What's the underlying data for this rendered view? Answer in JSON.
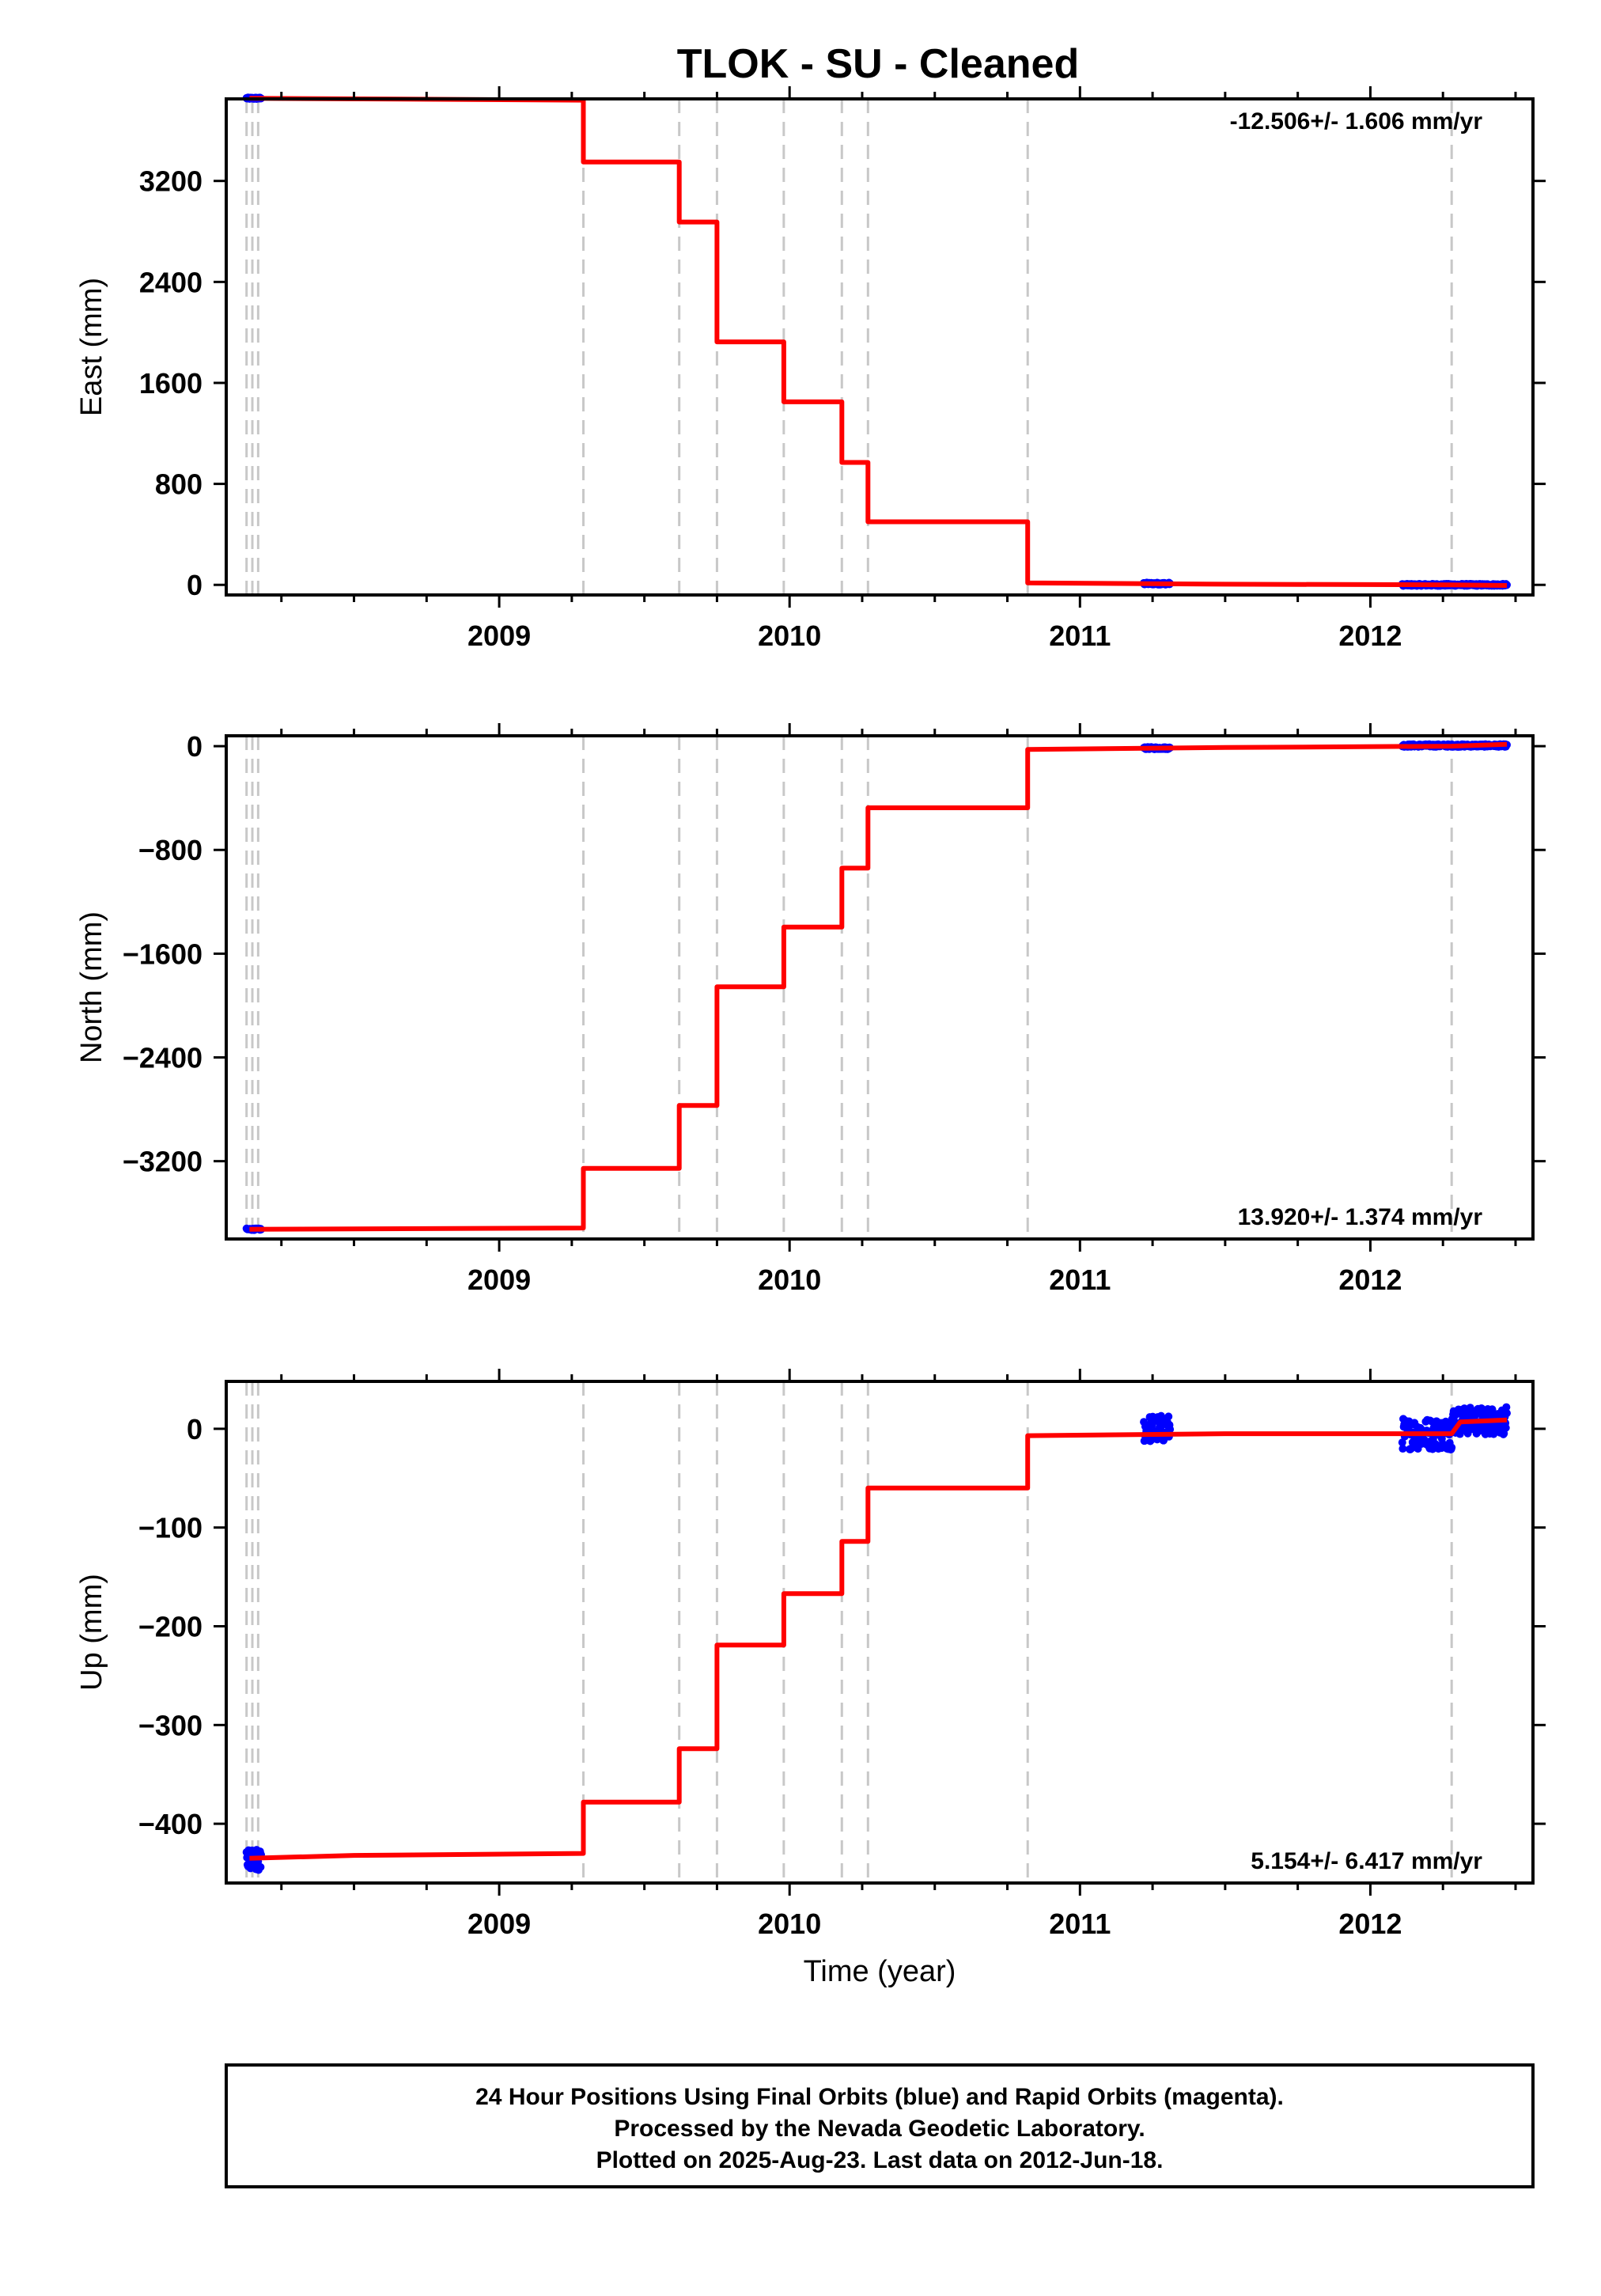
{
  "title": "TLOK  - SU - Cleaned",
  "footer": {
    "lines": [
      "24 Hour Positions Using Final Orbits (blue) and Rapid Orbits (magenta).",
      "Processed by the Nevada Geodetic Laboratory.",
      "Plotted on 2025-Aug-23. Last data on 2012-Jun-18."
    ]
  },
  "colors": {
    "data_points": "#0000ff",
    "model_line": "#ff0000",
    "event_lines": "#c8c8c8",
    "axes": "#000000"
  },
  "chart_data": [
    {
      "type": "line",
      "ylabel": "East (mm)",
      "xlabel": "",
      "rate_text": "-12.506+/- 1.606 mm/yr",
      "rate_position": "top-right",
      "xlim": [
        2008.06,
        2012.56
      ],
      "ylim": [
        -80,
        3850
      ],
      "x_ticks": [
        2009,
        2010,
        2011,
        2012
      ],
      "x_tick_labels": [
        "2009",
        "2010",
        "2011",
        "2012"
      ],
      "y_ticks": [
        0,
        800,
        1600,
        2400,
        3200
      ],
      "y_tick_labels": [
        "0",
        "800",
        "1600",
        "2400",
        "3200"
      ],
      "event_lines": [
        2008.13,
        2008.15,
        2008.17,
        2009.29,
        2009.62,
        2009.75,
        2009.98,
        2010.18,
        2010.27,
        2010.82,
        2012.28
      ],
      "model": {
        "x": [
          2008.14,
          2009.29,
          2009.29,
          2009.62,
          2009.62,
          2009.75,
          2009.75,
          2009.98,
          2009.98,
          2010.18,
          2010.18,
          2010.27,
          2010.27,
          2010.82,
          2010.82,
          2011.5,
          2012.28,
          2012.47
        ],
        "y": [
          3855,
          3840,
          3350,
          3350,
          2875,
          2875,
          1925,
          1925,
          1450,
          1450,
          970,
          970,
          500,
          500,
          15,
          5,
          0,
          -5
        ]
      },
      "data_clusters": [
        {
          "x_start": 2008.13,
          "x_end": 2008.18,
          "y_center": 3855,
          "spread": 6
        },
        {
          "x_start": 2011.22,
          "x_end": 2011.31,
          "y_center": 10,
          "spread": 8
        },
        {
          "x_start": 2012.11,
          "x_end": 2012.47,
          "y_center": 0,
          "spread": 8
        }
      ]
    },
    {
      "type": "line",
      "ylabel": "North (mm)",
      "xlabel": "",
      "rate_text": "13.920+/- 1.374 mm/yr",
      "rate_position": "bottom-right",
      "xlim": [
        2008.06,
        2012.56
      ],
      "ylim": [
        -3800,
        80
      ],
      "x_ticks": [
        2009,
        2010,
        2011,
        2012
      ],
      "x_tick_labels": [
        "2009",
        "2010",
        "2011",
        "2012"
      ],
      "y_ticks": [
        0,
        -800,
        -1600,
        -2400,
        -3200
      ],
      "y_tick_labels": [
        "0",
        "−800",
        "−1600",
        "−2400",
        "−3200"
      ],
      "event_lines": [
        2008.13,
        2008.15,
        2008.17,
        2009.29,
        2009.62,
        2009.75,
        2009.98,
        2010.18,
        2010.27,
        2010.82,
        2012.28
      ],
      "model": {
        "x": [
          2008.14,
          2009.29,
          2009.29,
          2009.62,
          2009.62,
          2009.75,
          2009.75,
          2009.98,
          2009.98,
          2010.18,
          2010.18,
          2010.27,
          2010.27,
          2010.82,
          2010.82,
          2011.5,
          2012.28,
          2012.47
        ],
        "y": [
          -3725,
          -3715,
          -3255,
          -3255,
          -2770,
          -2770,
          -1855,
          -1855,
          -1395,
          -1395,
          -940,
          -940,
          -475,
          -475,
          -25,
          -10,
          0,
          15
        ]
      },
      "data_clusters": [
        {
          "x_start": 2008.13,
          "x_end": 2008.18,
          "y_center": -3725,
          "spread": 6
        },
        {
          "x_start": 2011.22,
          "x_end": 2011.31,
          "y_center": -15,
          "spread": 8
        },
        {
          "x_start": 2012.11,
          "x_end": 2012.47,
          "y_center": 5,
          "spread": 10
        }
      ]
    },
    {
      "type": "line",
      "ylabel": "Up (mm)",
      "xlabel": "Time (year)",
      "rate_text": "5.154+/- 6.417 mm/yr",
      "rate_position": "bottom-right",
      "xlim": [
        2008.06,
        2012.56
      ],
      "ylim": [
        -460,
        48
      ],
      "x_ticks": [
        2009,
        2010,
        2011,
        2012
      ],
      "x_tick_labels": [
        "2009",
        "2010",
        "2011",
        "2012"
      ],
      "y_ticks": [
        0,
        -100,
        -200,
        -300,
        -400
      ],
      "y_tick_labels": [
        "0",
        "−100",
        "−200",
        "−300",
        "−400"
      ],
      "event_lines": [
        2008.13,
        2008.15,
        2008.17,
        2009.29,
        2009.62,
        2009.75,
        2009.98,
        2010.18,
        2010.27,
        2010.82,
        2012.28
      ],
      "model": {
        "x": [
          2008.14,
          2008.5,
          2009.29,
          2009.29,
          2009.62,
          2009.62,
          2009.75,
          2009.75,
          2009.98,
          2009.98,
          2010.18,
          2010.18,
          2010.27,
          2010.27,
          2010.82,
          2010.82,
          2011.5,
          2012.28,
          2012.31,
          2012.47
        ],
        "y": [
          -435,
          -432,
          -430,
          -378,
          -378,
          -324,
          -324,
          -219,
          -219,
          -167,
          -167,
          -114,
          -114,
          -60,
          -60,
          -7,
          -5,
          -5,
          7,
          9
        ]
      },
      "data_clusters": [
        {
          "x_start": 2008.13,
          "x_end": 2008.18,
          "y_center": -438,
          "spread": 12
        },
        {
          "x_start": 2011.22,
          "x_end": 2011.31,
          "y_center": 0,
          "spread": 14
        },
        {
          "x_start": 2012.11,
          "x_end": 2012.28,
          "y_center": -5,
          "spread": 16
        },
        {
          "x_start": 2012.28,
          "x_end": 2012.47,
          "y_center": 8,
          "spread": 14
        }
      ]
    }
  ]
}
